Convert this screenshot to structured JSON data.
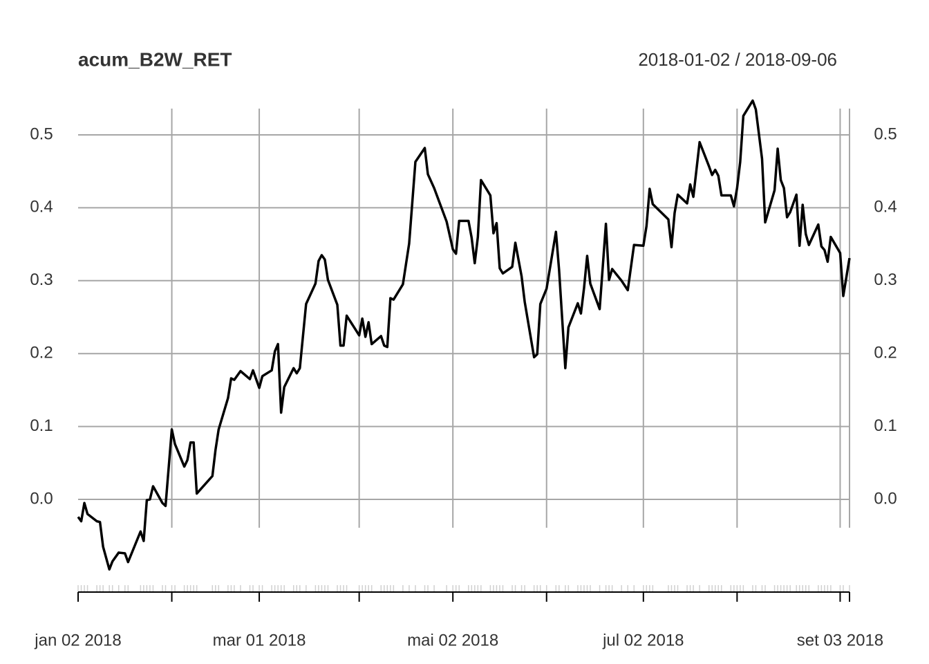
{
  "chart_data": {
    "type": "line",
    "title": "acum_B2W_RET",
    "subtitle": "2018-01-02 / 2018-09-06",
    "color": "#000000",
    "grid": true,
    "xlim": [
      "2018-01-02",
      "2018-09-06"
    ],
    "ylim": [
      -0.1,
      0.55
    ],
    "yticks": [
      {
        "value": 0,
        "label": "0.0"
      },
      0.1,
      0.2,
      0.3,
      0.4,
      0.5
    ],
    "xgrid": [
      "2018-01-02",
      "2018-02-01",
      "2018-03-01",
      "2018-04-02",
      "2018-05-02",
      "2018-06-01",
      "2018-07-02",
      "2018-08-01",
      "2018-09-03",
      "2018-09-06"
    ],
    "xticks": [
      {
        "value": "2018-01-02",
        "label": "jan 02 2018"
      },
      {
        "value": "2018-03-01",
        "label": "mar 01 2018"
      },
      {
        "value": "2018-05-02",
        "label": "mai 02 2018"
      },
      {
        "value": "2018-07-02",
        "label": "jul 02 2018"
      },
      {
        "value": "2018-09-03",
        "label": "set 03 2018"
      }
    ],
    "x": [
      "2018-01-02",
      "2018-01-03",
      "2018-01-04",
      "2018-01-05",
      "2018-01-08",
      "2018-01-09",
      "2018-01-10",
      "2018-01-12",
      "2018-01-13",
      "2018-01-15",
      "2018-01-17",
      "2018-01-18",
      "2018-01-22",
      "2018-01-23",
      "2018-01-24",
      "2018-01-25",
      "2018-01-26",
      "2018-01-29",
      "2018-01-30",
      "2018-02-01",
      "2018-02-02",
      "2018-02-05",
      "2018-02-06",
      "2018-02-07",
      "2018-02-08",
      "2018-02-09",
      "2018-02-14",
      "2018-02-15",
      "2018-02-16",
      "2018-02-19",
      "2018-02-20",
      "2018-02-21",
      "2018-02-23",
      "2018-02-26",
      "2018-02-27",
      "2018-03-01",
      "2018-03-02",
      "2018-03-05",
      "2018-03-06",
      "2018-03-07",
      "2018-03-08",
      "2018-03-09",
      "2018-03-12",
      "2018-03-13",
      "2018-03-14",
      "2018-03-16",
      "2018-03-19",
      "2018-03-20",
      "2018-03-21",
      "2018-03-22",
      "2018-03-23",
      "2018-03-26",
      "2018-03-27",
      "2018-03-28",
      "2018-03-29",
      "2018-04-02",
      "2018-04-03",
      "2018-04-04",
      "2018-04-05",
      "2018-04-06",
      "2018-04-09",
      "2018-04-10",
      "2018-04-11",
      "2018-04-12",
      "2018-04-13",
      "2018-04-16",
      "2018-04-18",
      "2018-04-20",
      "2018-04-23",
      "2018-04-24",
      "2018-04-26",
      "2018-04-30",
      "2018-05-02",
      "2018-05-03",
      "2018-05-04",
      "2018-05-07",
      "2018-05-08",
      "2018-05-09",
      "2018-05-10",
      "2018-05-11",
      "2018-05-14",
      "2018-05-15",
      "2018-05-16",
      "2018-05-17",
      "2018-05-18",
      "2018-05-21",
      "2018-05-22",
      "2018-05-24",
      "2018-05-25",
      "2018-05-28",
      "2018-05-29",
      "2018-05-30",
      "2018-06-01",
      "2018-06-04",
      "2018-06-05",
      "2018-06-07",
      "2018-06-08",
      "2018-06-11",
      "2018-06-12",
      "2018-06-13",
      "2018-06-14",
      "2018-06-15",
      "2018-06-18",
      "2018-06-20",
      "2018-06-21",
      "2018-06-22",
      "2018-06-25",
      "2018-06-27",
      "2018-06-29",
      "2018-07-02",
      "2018-07-03",
      "2018-07-04",
      "2018-07-05",
      "2018-07-10",
      "2018-07-11",
      "2018-07-12",
      "2018-07-13",
      "2018-07-16",
      "2018-07-17",
      "2018-07-18",
      "2018-07-20",
      "2018-07-23",
      "2018-07-24",
      "2018-07-25",
      "2018-07-26",
      "2018-07-27",
      "2018-07-30",
      "2018-07-31",
      "2018-08-01",
      "2018-08-02",
      "2018-08-03",
      "2018-08-06",
      "2018-08-07",
      "2018-08-09",
      "2018-08-10",
      "2018-08-13",
      "2018-08-14",
      "2018-08-15",
      "2018-08-16",
      "2018-08-17",
      "2018-08-18",
      "2018-08-20",
      "2018-08-21",
      "2018-08-22",
      "2018-08-23",
      "2018-08-24",
      "2018-08-27",
      "2018-08-28",
      "2018-08-29",
      "2018-08-30",
      "2018-08-31",
      "2018-09-03",
      "2018-09-04",
      "2018-09-06"
    ],
    "values": [
      -0.024,
      -0.03,
      -0.005,
      -0.02,
      -0.03,
      -0.031,
      -0.065,
      -0.096,
      -0.085,
      -0.073,
      -0.074,
      -0.086,
      -0.044,
      -0.057,
      -0.001,
      0.0,
      0.018,
      -0.005,
      -0.009,
      0.096,
      0.076,
      0.045,
      0.054,
      0.078,
      0.078,
      0.008,
      0.032,
      0.068,
      0.096,
      0.139,
      0.166,
      0.164,
      0.176,
      0.165,
      0.177,
      0.153,
      0.169,
      0.177,
      0.203,
      0.213,
      0.119,
      0.154,
      0.18,
      0.173,
      0.18,
      0.268,
      0.296,
      0.327,
      0.335,
      0.329,
      0.301,
      0.267,
      0.211,
      0.211,
      0.252,
      0.225,
      0.248,
      0.223,
      0.243,
      0.213,
      0.224,
      0.211,
      0.209,
      0.276,
      0.274,
      0.295,
      0.351,
      0.463,
      0.482,
      0.446,
      0.427,
      0.381,
      0.343,
      0.337,
      0.382,
      0.382,
      0.359,
      0.324,
      0.36,
      0.438,
      0.417,
      0.365,
      0.379,
      0.317,
      0.31,
      0.319,
      0.352,
      0.306,
      0.271,
      0.195,
      0.199,
      0.268,
      0.289,
      0.367,
      0.315,
      0.18,
      0.236,
      0.269,
      0.255,
      0.29,
      0.334,
      0.296,
      0.261,
      0.378,
      0.301,
      0.316,
      0.3,
      0.287,
      0.349,
      0.348,
      0.375,
      0.426,
      0.405,
      0.384,
      0.346,
      0.393,
      0.418,
      0.406,
      0.432,
      0.415,
      0.49,
      0.457,
      0.445,
      0.452,
      0.444,
      0.417,
      0.417,
      0.402,
      0.427,
      0.463,
      0.526,
      0.547,
      0.535,
      0.467,
      0.38,
      0.424,
      0.481,
      0.438,
      0.427,
      0.387,
      0.394,
      0.418,
      0.348,
      0.404,
      0.364,
      0.349,
      0.377,
      0.347,
      0.342,
      0.326,
      0.36,
      0.338,
      0.279,
      0.331
    ]
  }
}
